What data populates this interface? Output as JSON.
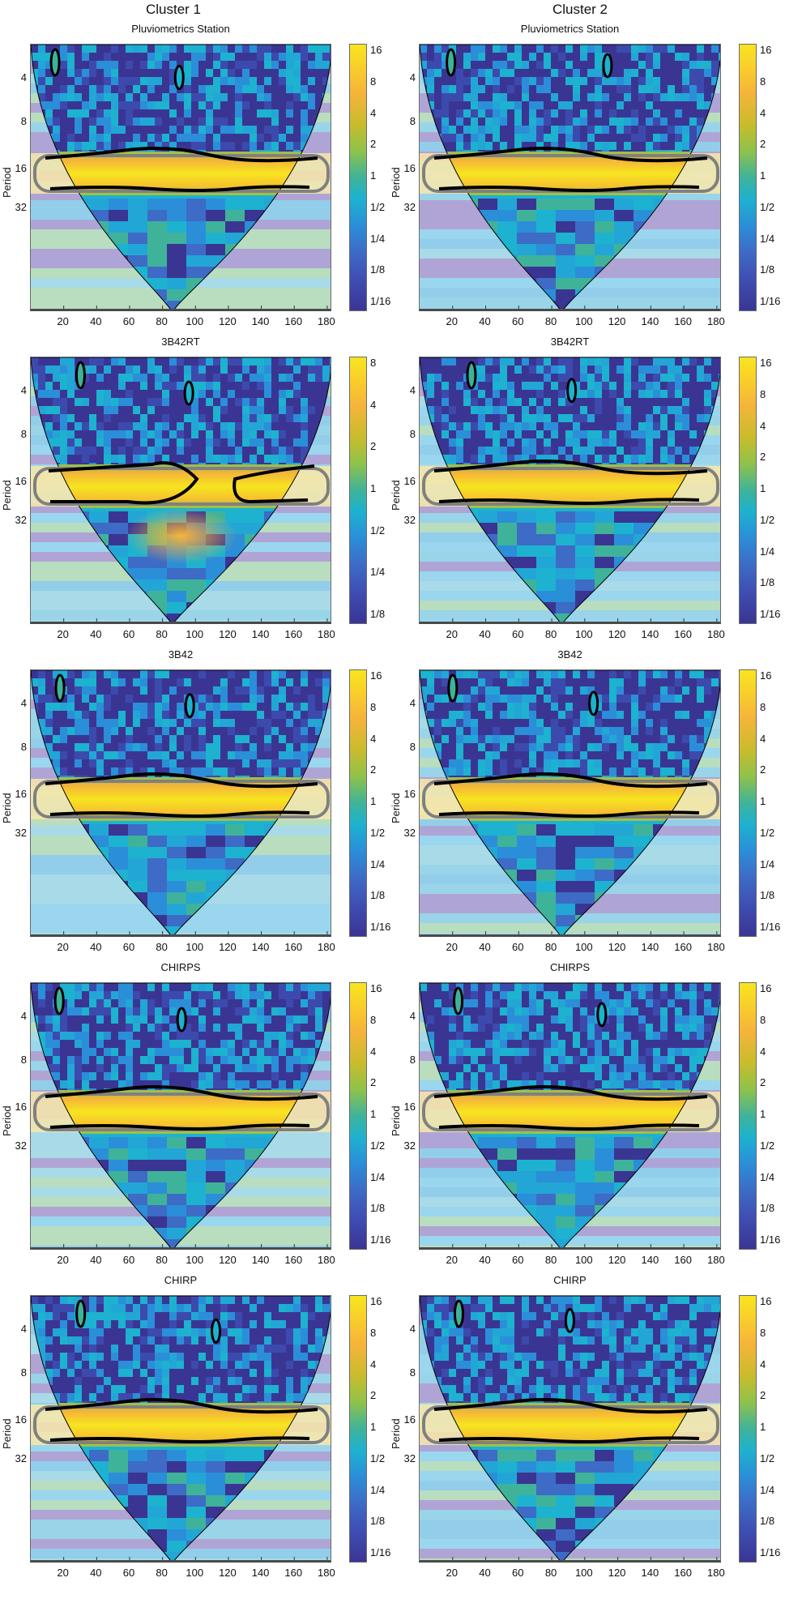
{
  "figure": {
    "cluster_titles": [
      "Cluster 1",
      "Cluster 2"
    ],
    "y_axis_label": "Period",
    "y_ticks": [
      "4",
      "8",
      "16",
      "32"
    ],
    "x_ticks": [
      "20",
      "40",
      "60",
      "80",
      "100",
      "120",
      "140",
      "160",
      "180"
    ]
  },
  "panels": [
    {
      "cluster": "Cluster 1",
      "title": "Pluviometrics Station",
      "colorbar_ticks": [
        "16",
        "8",
        "4",
        "2",
        "1",
        "1/2",
        "1/4",
        "1/8",
        "1/16"
      ]
    },
    {
      "cluster": "Cluster 2",
      "title": "Pluviometrics Station",
      "colorbar_ticks": [
        "16",
        "8",
        "4",
        "2",
        "1",
        "1/2",
        "1/4",
        "1/8",
        "1/16"
      ]
    },
    {
      "cluster": "Cluster 1",
      "title": "3B42RT",
      "colorbar_ticks": [
        "8",
        "4",
        "2",
        "1",
        "1/2",
        "1/4",
        "1/8"
      ]
    },
    {
      "cluster": "Cluster 2",
      "title": "3B42RT",
      "colorbar_ticks": [
        "16",
        "8",
        "4",
        "2",
        "1",
        "1/2",
        "1/4",
        "1/8",
        "1/16"
      ]
    },
    {
      "cluster": "Cluster 1",
      "title": "3B42",
      "colorbar_ticks": [
        "16",
        "8",
        "4",
        "2",
        "1",
        "1/2",
        "1/4",
        "1/8",
        "1/16"
      ]
    },
    {
      "cluster": "Cluster 2",
      "title": "3B42",
      "colorbar_ticks": [
        "16",
        "8",
        "4",
        "2",
        "1",
        "1/2",
        "1/4",
        "1/8",
        "1/16"
      ]
    },
    {
      "cluster": "Cluster 1",
      "title": "CHIRPS",
      "colorbar_ticks": [
        "16",
        "8",
        "4",
        "2",
        "1",
        "1/2",
        "1/4",
        "1/8",
        "1/16"
      ]
    },
    {
      "cluster": "Cluster 2",
      "title": "CHIRPS",
      "colorbar_ticks": [
        "16",
        "8",
        "4",
        "2",
        "1",
        "1/2",
        "1/4",
        "1/8",
        "1/16"
      ]
    },
    {
      "cluster": "Cluster 1",
      "title": "CHIRP",
      "colorbar_ticks": [
        "16",
        "8",
        "4",
        "2",
        "1",
        "1/2",
        "1/4",
        "1/8",
        "1/16"
      ]
    },
    {
      "cluster": "Cluster 2",
      "title": "CHIRP",
      "colorbar_ticks": [
        "16",
        "8",
        "4",
        "2",
        "1",
        "1/2",
        "1/4",
        "1/8",
        "1/16"
      ]
    }
  ],
  "colors": {
    "low": "#3a3593",
    "mid": "#1db2cf",
    "high": "#f7e51f",
    "coi_shade": "#9b92c8",
    "significance_contour": "#000000",
    "coi_contour": "#808080"
  },
  "chart_data": [
    {
      "type": "heatmap",
      "title": "Pluviometrics Station",
      "subtitle": "Cluster 1",
      "xlabel": "",
      "ylabel": "Period",
      "xlim": [
        1,
        183
      ],
      "x_ticks": [
        20,
        40,
        60,
        80,
        100,
        120,
        140,
        160,
        180
      ],
      "y_ticks": [
        4,
        8,
        16,
        32
      ],
      "y_scale": "log2",
      "colorbar": {
        "ticks": [
          "16",
          "8",
          "4",
          "2",
          "1",
          "1/2",
          "1/4",
          "1/8",
          "1/16"
        ],
        "range": [
          0.0625,
          16
        ]
      },
      "high_power_band": {
        "period_range": [
          9,
          15
        ],
        "x_range": [
          15,
          168
        ],
        "significant": true
      },
      "cone_of_influence": true
    },
    {
      "type": "heatmap",
      "title": "Pluviometrics Station",
      "subtitle": "Cluster 2",
      "xlabel": "",
      "ylabel": "Period",
      "xlim": [
        1,
        183
      ],
      "x_ticks": [
        20,
        40,
        60,
        80,
        100,
        120,
        140,
        160,
        180
      ],
      "y_ticks": [
        4,
        8,
        16,
        32
      ],
      "y_scale": "log2",
      "colorbar": {
        "ticks": [
          "16",
          "8",
          "4",
          "2",
          "1",
          "1/2",
          "1/4",
          "1/8",
          "1/16"
        ],
        "range": [
          0.0625,
          16
        ]
      },
      "high_power_band": {
        "period_range": [
          9,
          15
        ],
        "x_range": [
          15,
          168
        ],
        "significant": true
      },
      "cone_of_influence": true
    },
    {
      "type": "heatmap",
      "title": "3B42RT",
      "subtitle": "Cluster 1",
      "xlabel": "",
      "ylabel": "Period",
      "xlim": [
        1,
        183
      ],
      "x_ticks": [
        20,
        40,
        60,
        80,
        100,
        120,
        140,
        160,
        180
      ],
      "y_ticks": [
        4,
        8,
        16,
        32
      ],
      "y_scale": "log2",
      "colorbar": {
        "ticks": [
          "8",
          "4",
          "2",
          "1",
          "1/2",
          "1/4",
          "1/8"
        ],
        "range": [
          0.125,
          8
        ]
      },
      "high_power_band": {
        "period_range": [
          10,
          15
        ],
        "x_range": [
          [
            15,
            85
          ],
          [
            135,
            168
          ]
        ],
        "significant": true
      },
      "secondary_peak": {
        "period": 20,
        "x": 110
      },
      "cone_of_influence": true
    },
    {
      "type": "heatmap",
      "title": "3B42RT",
      "subtitle": "Cluster 2",
      "xlabel": "",
      "ylabel": "Period",
      "xlim": [
        1,
        183
      ],
      "x_ticks": [
        20,
        40,
        60,
        80,
        100,
        120,
        140,
        160,
        180
      ],
      "y_ticks": [
        4,
        8,
        16,
        32
      ],
      "y_scale": "log2",
      "colorbar": {
        "ticks": [
          "16",
          "8",
          "4",
          "2",
          "1",
          "1/2",
          "1/4",
          "1/8",
          "1/16"
        ],
        "range": [
          0.0625,
          16
        ]
      },
      "high_power_band": {
        "period_range": [
          9,
          15
        ],
        "x_range": [
          15,
          168
        ],
        "significant": true
      },
      "cone_of_influence": true
    },
    {
      "type": "heatmap",
      "title": "3B42",
      "subtitle": "Cluster 1",
      "xlabel": "",
      "ylabel": "Period",
      "xlim": [
        1,
        183
      ],
      "x_ticks": [
        20,
        40,
        60,
        80,
        100,
        120,
        140,
        160,
        180
      ],
      "y_ticks": [
        4,
        8,
        16,
        32
      ],
      "y_scale": "log2",
      "colorbar": {
        "ticks": [
          "16",
          "8",
          "4",
          "2",
          "1",
          "1/2",
          "1/4",
          "1/8",
          "1/16"
        ],
        "range": [
          0.0625,
          16
        ]
      },
      "high_power_band": {
        "period_range": [
          9,
          15
        ],
        "x_range": [
          15,
          168
        ],
        "significant": true
      },
      "cone_of_influence": true
    },
    {
      "type": "heatmap",
      "title": "3B42",
      "subtitle": "Cluster 2",
      "xlabel": "",
      "ylabel": "Period",
      "xlim": [
        1,
        183
      ],
      "x_ticks": [
        20,
        40,
        60,
        80,
        100,
        120,
        140,
        160,
        180
      ],
      "y_ticks": [
        4,
        8,
        16,
        32
      ],
      "y_scale": "log2",
      "colorbar": {
        "ticks": [
          "16",
          "8",
          "4",
          "2",
          "1",
          "1/2",
          "1/4",
          "1/8",
          "1/16"
        ],
        "range": [
          0.0625,
          16
        ]
      },
      "high_power_band": {
        "period_range": [
          9,
          15
        ],
        "x_range": [
          15,
          168
        ],
        "significant": true
      },
      "cone_of_influence": true
    },
    {
      "type": "heatmap",
      "title": "CHIRPS",
      "subtitle": "Cluster 1",
      "xlabel": "",
      "ylabel": "Period",
      "xlim": [
        1,
        183
      ],
      "x_ticks": [
        20,
        40,
        60,
        80,
        100,
        120,
        140,
        160,
        180
      ],
      "y_ticks": [
        4,
        8,
        16,
        32
      ],
      "y_scale": "log2",
      "colorbar": {
        "ticks": [
          "16",
          "8",
          "4",
          "2",
          "1",
          "1/2",
          "1/4",
          "1/8",
          "1/16"
        ],
        "range": [
          0.0625,
          16
        ]
      },
      "high_power_band": {
        "period_range": [
          9,
          15
        ],
        "x_range": [
          15,
          168
        ],
        "significant": true
      },
      "cone_of_influence": true
    },
    {
      "type": "heatmap",
      "title": "CHIRPS",
      "subtitle": "Cluster 2",
      "xlabel": "",
      "ylabel": "Period",
      "xlim": [
        1,
        183
      ],
      "x_ticks": [
        20,
        40,
        60,
        80,
        100,
        120,
        140,
        160,
        180
      ],
      "y_ticks": [
        4,
        8,
        16,
        32
      ],
      "y_scale": "log2",
      "colorbar": {
        "ticks": [
          "16",
          "8",
          "4",
          "2",
          "1",
          "1/2",
          "1/4",
          "1/8",
          "1/16"
        ],
        "range": [
          0.0625,
          16
        ]
      },
      "high_power_band": {
        "period_range": [
          9,
          15
        ],
        "x_range": [
          15,
          168
        ],
        "significant": true
      },
      "cone_of_influence": true
    },
    {
      "type": "heatmap",
      "title": "CHIRP",
      "subtitle": "Cluster 1",
      "xlabel": "",
      "ylabel": "Period",
      "xlim": [
        1,
        183
      ],
      "x_ticks": [
        20,
        40,
        60,
        80,
        100,
        120,
        140,
        160,
        180
      ],
      "y_ticks": [
        4,
        8,
        16,
        32
      ],
      "y_scale": "log2",
      "colorbar": {
        "ticks": [
          "16",
          "8",
          "4",
          "2",
          "1",
          "1/2",
          "1/4",
          "1/8",
          "1/16"
        ],
        "range": [
          0.0625,
          16
        ]
      },
      "high_power_band": {
        "period_range": [
          9,
          15
        ],
        "x_range": [
          15,
          168
        ],
        "significant": true
      },
      "cone_of_influence": true
    },
    {
      "type": "heatmap",
      "title": "CHIRP",
      "subtitle": "Cluster 2",
      "xlabel": "",
      "ylabel": "Period",
      "xlim": [
        1,
        183
      ],
      "x_ticks": [
        20,
        40,
        60,
        80,
        100,
        120,
        140,
        160,
        180
      ],
      "y_ticks": [
        4,
        8,
        16,
        32
      ],
      "y_scale": "log2",
      "colorbar": {
        "ticks": [
          "16",
          "8",
          "4",
          "2",
          "1",
          "1/2",
          "1/4",
          "1/8",
          "1/16"
        ],
        "range": [
          0.0625,
          16
        ]
      },
      "high_power_band": {
        "period_range": [
          9,
          15
        ],
        "x_range": [
          15,
          168
        ],
        "significant": true
      },
      "cone_of_influence": true
    }
  ]
}
